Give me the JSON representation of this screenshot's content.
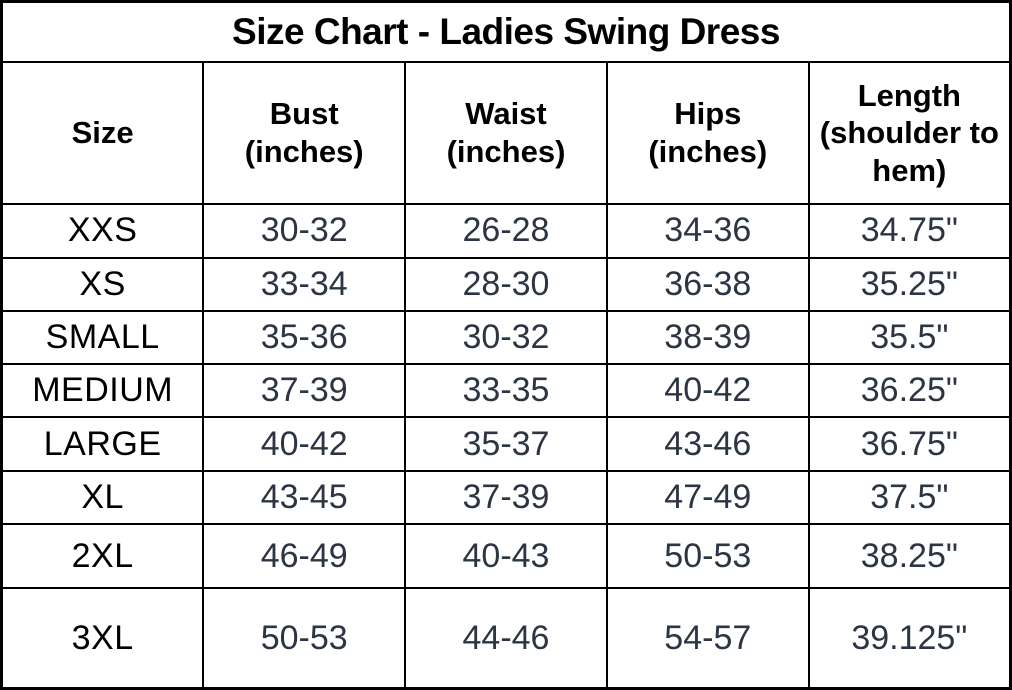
{
  "title": "Size Chart - Ladies Swing Dress",
  "colors": {
    "border": "#000000",
    "title_text": "#000000",
    "header_text": "#000000",
    "size_label_text": "#000000",
    "value_text": "#2c3543",
    "background": "#ffffff"
  },
  "chart_data": {
    "type": "table",
    "title": "Size Chart - Ladies Swing Dress",
    "columns": [
      "Size",
      "Bust (inches)",
      "Waist (inches)",
      "Hips (inches)",
      "Length (shoulder to hem)"
    ],
    "headers": [
      {
        "line1": "Size",
        "line2": ""
      },
      {
        "line1": "Bust",
        "line2": "(inches)"
      },
      {
        "line1": "Waist",
        "line2": "(inches)"
      },
      {
        "line1": "Hips",
        "line2": "(inches)"
      },
      {
        "line1": "Length",
        "line2": "(shoulder to hem)"
      }
    ],
    "rows": [
      {
        "size": "XXS",
        "bust": "30-32",
        "waist": "26-28",
        "hips": "34-36",
        "length": "34.75\""
      },
      {
        "size": "XS",
        "bust": "33-34",
        "waist": "28-30",
        "hips": "36-38",
        "length": "35.25\""
      },
      {
        "size": "SMALL",
        "bust": "35-36",
        "waist": "30-32",
        "hips": "38-39",
        "length": "35.5\""
      },
      {
        "size": "MEDIUM",
        "bust": "37-39",
        "waist": "33-35",
        "hips": "40-42",
        "length": "36.25\""
      },
      {
        "size": "LARGE",
        "bust": "40-42",
        "waist": "35-37",
        "hips": "43-46",
        "length": "36.75\""
      },
      {
        "size": "XL",
        "bust": "43-45",
        "waist": "37-39",
        "hips": "47-49",
        "length": "37.5\""
      },
      {
        "size": "2XL",
        "bust": "46-49",
        "waist": "40-43",
        "hips": "50-53",
        "length": "38.25\""
      },
      {
        "size": "3XL",
        "bust": "50-53",
        "waist": "44-46",
        "hips": "54-57",
        "length": "39.125\""
      }
    ]
  }
}
